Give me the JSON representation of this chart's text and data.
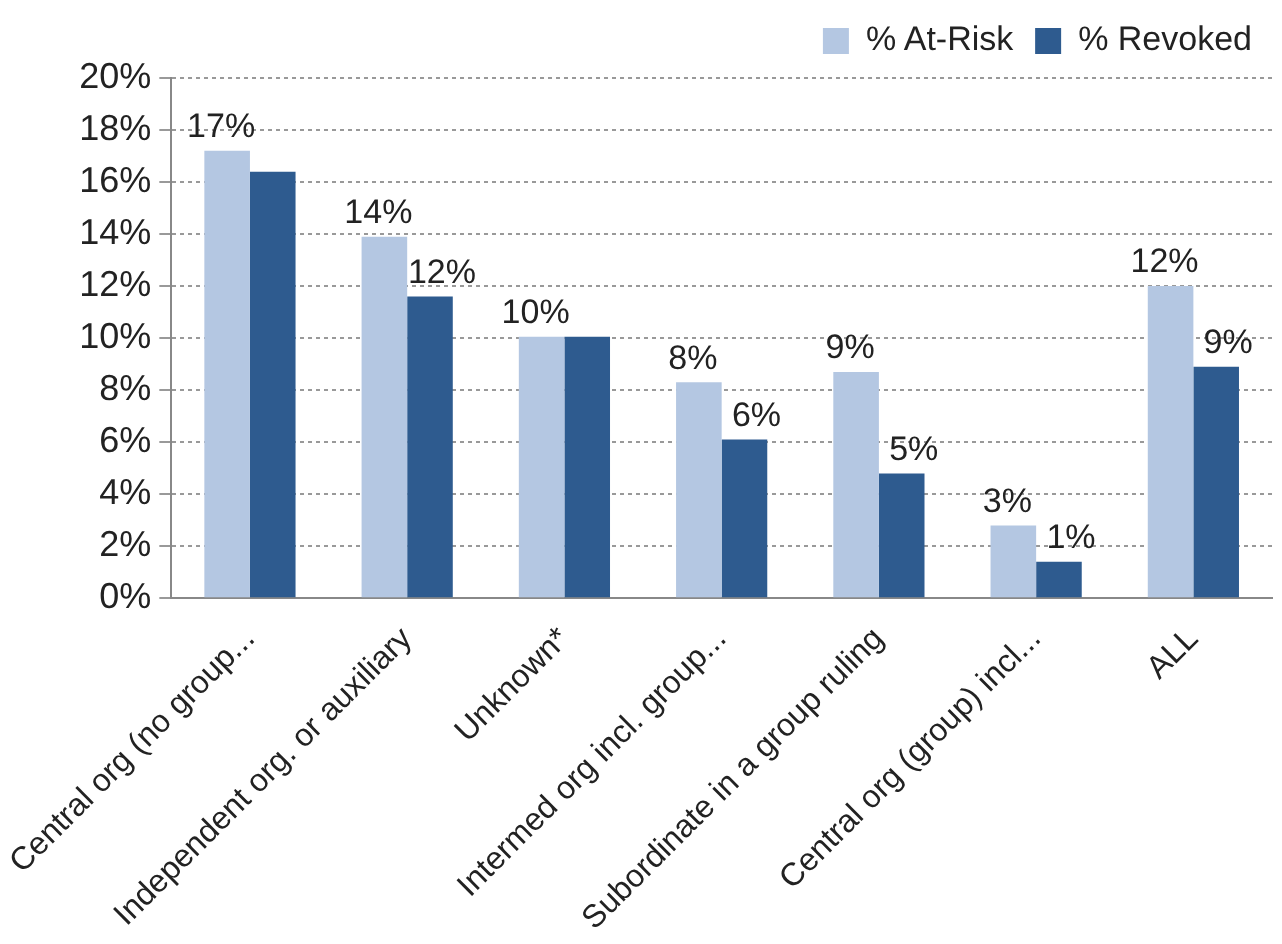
{
  "chart_data": {
    "type": "bar",
    "categories": [
      "Central org (no group...",
      "Independent org. or auxiliary",
      "Unknown*",
      "Intermed org incl. group...",
      "Subordinate in a group ruling",
      "Central org (group) incl...",
      "ALL"
    ],
    "series": [
      {
        "name": "% At-Risk",
        "color": "#b4c7e2",
        "values": [
          17.2,
          13.9,
          10.05,
          8.3,
          8.7,
          2.8,
          12.0
        ],
        "value_labels": [
          "17%",
          "14%",
          "10%",
          "8%",
          "9%",
          "3%",
          "12%"
        ]
      },
      {
        "name": "% Revoked",
        "color": "#2e5b8f",
        "values": [
          16.4,
          11.6,
          10.05,
          6.1,
          4.8,
          1.4,
          8.9
        ],
        "value_labels": [
          null,
          "12%",
          null,
          "6%",
          "5%",
          "1%",
          "9%"
        ]
      }
    ],
    "ylim": [
      0,
      20
    ],
    "yticks": [
      {
        "value": 0,
        "label": "0%"
      },
      {
        "value": 2,
        "label": "2%"
      },
      {
        "value": 4,
        "label": "4%"
      },
      {
        "value": 6,
        "label": "6%"
      },
      {
        "value": 8,
        "label": "8%"
      },
      {
        "value": 10,
        "label": "10%"
      },
      {
        "value": 12,
        "label": "12%"
      },
      {
        "value": 14,
        "label": "14%"
      },
      {
        "value": 16,
        "label": "16%"
      },
      {
        "value": 18,
        "label": "18%"
      },
      {
        "value": 20,
        "label": "20%"
      }
    ],
    "grid": "y",
    "legend": "top right"
  }
}
